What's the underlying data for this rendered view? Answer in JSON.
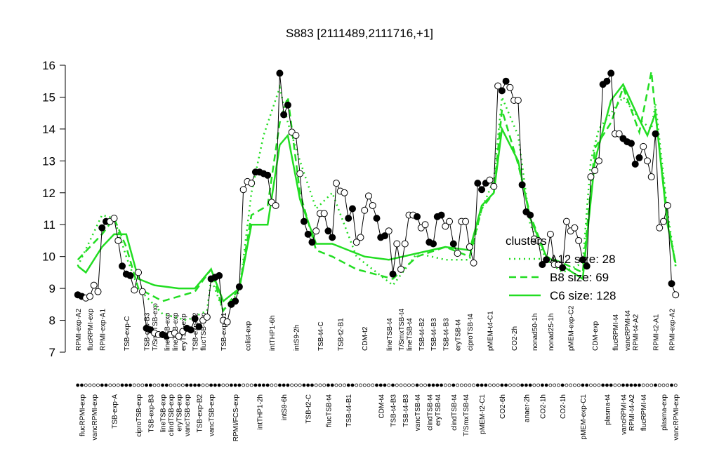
{
  "chart_data": {
    "type": "scatter",
    "title": "S883 [2111489,2111716,+1]",
    "xlim": [
      0,
      150
    ],
    "ylim": [
      7,
      16
    ],
    "yticks": [
      7,
      8,
      9,
      10,
      11,
      12,
      13,
      14,
      15,
      16
    ],
    "xticks": [
      {
        "value": 1,
        "label": "RPMI-exp-A2"
      },
      {
        "value": 2,
        "label": "flucRPMI-exp"
      },
      {
        "value": 4,
        "label": "flucRPMI-exp"
      },
      {
        "value": 5,
        "label": "vancRPMI-exp"
      },
      {
        "value": 7,
        "label": "RPMI-exp-A1"
      },
      {
        "value": 10,
        "label": "TSB-exp-A"
      },
      {
        "value": 13,
        "label": "TSB-exp-C"
      },
      {
        "value": 16,
        "label": "ciproTSB-exp"
      },
      {
        "value": 18,
        "label": "TSB-exp-B3"
      },
      {
        "value": 19,
        "label": "TSB-exp-B3"
      },
      {
        "value": 20,
        "label": "T/SmxTSB-exp"
      },
      {
        "value": 22,
        "label": "lineTSB-exp"
      },
      {
        "value": 23,
        "label": "lineTSB-exp"
      },
      {
        "value": 24,
        "label": "clindTSB-exp"
      },
      {
        "value": 25,
        "label": "lineTSB-exp"
      },
      {
        "value": 26,
        "label": "eryTSB-exp"
      },
      {
        "value": 27,
        "label": "eryTSB-exp"
      },
      {
        "value": 28,
        "label": "vancTSB-exp"
      },
      {
        "value": 30,
        "label": "TSB-exp-B2"
      },
      {
        "value": 31,
        "label": "TSB-exp-B2"
      },
      {
        "value": 32,
        "label": "flucTSB-exp"
      },
      {
        "value": 34,
        "label": "vancTSB-exp"
      },
      {
        "value": 37,
        "label": "TSB-exp-B1"
      },
      {
        "value": 40,
        "label": "RPMI/FCS-exp"
      },
      {
        "value": 43,
        "label": "colist-exp"
      },
      {
        "value": 46,
        "label": "intTHP1-2h"
      },
      {
        "value": 49,
        "label": "intTHP1-6h"
      },
      {
        "value": 52,
        "label": "intS9-6h"
      },
      {
        "value": 55,
        "label": "intS9-2h"
      },
      {
        "value": 58,
        "label": "TSB-t2-C"
      },
      {
        "value": 61,
        "label": "TSB-t4-C"
      },
      {
        "value": 63,
        "label": "flucTSB-t4"
      },
      {
        "value": 66,
        "label": "TSB-t2-B1"
      },
      {
        "value": 68,
        "label": "TSB-t4-B1"
      },
      {
        "value": 72,
        "label": "CDM-t2"
      },
      {
        "value": 76,
        "label": "CDM-t4"
      },
      {
        "value": 78,
        "label": "lineTSB-t4"
      },
      {
        "value": 79,
        "label": "TSB-t4-B3"
      },
      {
        "value": 81,
        "label": "T/SmxTSB-t4"
      },
      {
        "value": 82,
        "label": "TSB-t4-B3"
      },
      {
        "value": 83,
        "label": "lineTSB-t4"
      },
      {
        "value": 85,
        "label": "vancTSB-t4"
      },
      {
        "value": 86,
        "label": "TSB-t4-B2"
      },
      {
        "value": 88,
        "label": "clindTSB-t4"
      },
      {
        "value": 89,
        "label": "TSB-t4-B3"
      },
      {
        "value": 90,
        "label": "eryTSB-t4"
      },
      {
        "value": 92,
        "label": "TSB-t4-B3"
      },
      {
        "value": 94,
        "label": "clindTSB-t4"
      },
      {
        "value": 95,
        "label": "eryTSB-t4"
      },
      {
        "value": 97,
        "label": "T/SmxTSB-t4"
      },
      {
        "value": 98,
        "label": "ciproTSB-t4"
      },
      {
        "value": 101,
        "label": "pMEM-t2-C1"
      },
      {
        "value": 103,
        "label": "pMEM-t4-C1"
      },
      {
        "value": 106,
        "label": "CO2-6h"
      },
      {
        "value": 109,
        "label": "CO2-2h"
      },
      {
        "value": 112,
        "label": "anaer-2h"
      },
      {
        "value": 114,
        "label": "nonad50-1h"
      },
      {
        "value": 116,
        "label": "CO2-1h"
      },
      {
        "value": 118,
        "label": "nonad25-1h"
      },
      {
        "value": 121,
        "label": "CO2-1h"
      },
      {
        "value": 123,
        "label": "pMEM-exp-C2"
      },
      {
        "value": 126,
        "label": "pMEM-exp-C1"
      },
      {
        "value": 129,
        "label": "CDM-exp"
      },
      {
        "value": 132,
        "label": "plasma-t4"
      },
      {
        "value": 134,
        "label": "flucRPMI-t4"
      },
      {
        "value": 136,
        "label": "vancRPMI-t4"
      },
      {
        "value": 137,
        "label": "vancRPMI-t4"
      },
      {
        "value": 138,
        "label": "RPMI-t4-A2"
      },
      {
        "value": 139,
        "label": "RPMI-t4-A2"
      },
      {
        "value": 141,
        "label": "flucRPMI-t4"
      },
      {
        "value": 144,
        "label": "RPMI-t2-A1"
      },
      {
        "value": 146,
        "label": "plasma-exp"
      },
      {
        "value": 148,
        "label": "RPMI-exp-A2"
      },
      {
        "value": 149,
        "label": "vancRPMI-exp"
      }
    ],
    "points": {
      "color": "#000000",
      "x": [
        1,
        2,
        3,
        4,
        5,
        6,
        7,
        8,
        9,
        10,
        11,
        12,
        13,
        14,
        15,
        16,
        17,
        18,
        19,
        20,
        21,
        22,
        23,
        24,
        25,
        26,
        27,
        28,
        29,
        30,
        31,
        32,
        33,
        34,
        35,
        36,
        37,
        38,
        39,
        40,
        41,
        42,
        43,
        44,
        45,
        46,
        47,
        48,
        49,
        50,
        51,
        52,
        53,
        54,
        55,
        56,
        57,
        58,
        59,
        60,
        61,
        62,
        63,
        64,
        65,
        66,
        67,
        68,
        69,
        70,
        71,
        72,
        73,
        74,
        75,
        76,
        77,
        78,
        79,
        80,
        81,
        82,
        83,
        84,
        85,
        86,
        87,
        88,
        89,
        90,
        91,
        92,
        93,
        94,
        95,
        96,
        97,
        98,
        99,
        100,
        101,
        102,
        103,
        104,
        105,
        106,
        107,
        108,
        109,
        110,
        111,
        112,
        113,
        114,
        115,
        116,
        117,
        118,
        119,
        120,
        121,
        122,
        123,
        124,
        125,
        126,
        127,
        128,
        129,
        130,
        131,
        132,
        133,
        134,
        135,
        136,
        137,
        138,
        139,
        140,
        141,
        142,
        143,
        144,
        145,
        146,
        147,
        148,
        149
      ],
      "values": [
        8.8,
        8.75,
        8.7,
        8.75,
        9.1,
        8.9,
        10.9,
        11.1,
        11.1,
        11.2,
        10.5,
        9.7,
        9.45,
        9.4,
        8.95,
        9.5,
        8.9,
        7.75,
        7.7,
        7.6,
        7.55,
        7.55,
        7.5,
        7.55,
        7.6,
        7.5,
        7.65,
        7.75,
        7.7,
        8.05,
        7.8,
        8.0,
        8.1,
        9.3,
        9.35,
        9.4,
        8.0,
        7.95,
        8.5,
        8.6,
        9.05,
        12.1,
        12.35,
        12.3,
        12.65,
        12.65,
        12.6,
        12.55,
        11.7,
        11.6,
        15.75,
        14.45,
        14.75,
        13.9,
        13.8,
        12.6,
        11.1,
        10.7,
        10.45,
        10.8,
        11.35,
        11.35,
        10.8,
        10.6,
        12.3,
        12.05,
        12.0,
        11.2,
        11.5,
        10.45,
        10.6,
        11.45,
        11.9,
        11.6,
        11.2,
        10.6,
        10.65,
        10.8,
        9.45,
        10.4,
        9.6,
        10.4,
        11.3,
        11.3,
        11.25,
        10.9,
        11.0,
        10.45,
        10.4,
        11.25,
        11.3,
        10.95,
        11.1,
        10.4,
        10.1,
        11.1,
        11.1,
        10.3,
        9.8,
        12.3,
        12.1,
        12.3,
        12.4,
        12.2,
        15.35,
        15.2,
        15.5,
        15.3,
        14.9,
        14.9,
        12.25,
        11.4,
        11.3,
        10.55,
        10.5,
        9.75,
        9.9,
        10.7,
        9.75,
        9.75,
        9.65,
        11.1,
        10.8,
        10.9,
        10.5,
        9.9,
        9.7,
        12.5,
        12.7,
        13.0,
        15.4,
        15.5,
        15.75,
        13.85,
        13.85,
        13.7,
        13.6,
        13.55,
        12.9,
        13.1,
        13.45,
        13.0,
        12.5,
        13.85,
        10.9,
        11.1,
        11.6,
        9.15,
        8.8
      ],
      "filled": [
        true,
        true,
        false,
        false,
        false,
        false,
        true,
        true,
        false,
        false,
        false,
        true,
        true,
        true,
        false,
        false,
        false,
        true,
        true,
        false,
        false,
        true,
        true,
        false,
        false,
        false,
        false,
        true,
        true,
        true,
        true,
        false,
        false,
        true,
        true,
        true,
        false,
        false,
        true,
        true,
        true,
        false,
        false,
        false,
        true,
        true,
        true,
        true,
        false,
        false,
        true,
        true,
        true,
        false,
        false,
        false,
        true,
        true,
        true,
        false,
        false,
        false,
        true,
        true,
        false,
        false,
        false,
        true,
        true,
        false,
        false,
        false,
        false,
        false,
        true,
        true,
        true,
        false,
        true,
        false,
        false,
        false,
        false,
        false,
        true,
        false,
        false,
        true,
        true,
        true,
        true,
        false,
        false,
        true,
        false,
        false,
        false,
        false,
        false,
        true,
        true,
        true,
        false,
        false,
        false,
        true,
        true,
        false,
        false,
        false,
        true,
        true,
        true,
        false,
        false,
        true,
        true,
        false,
        false,
        false,
        true,
        false,
        false,
        false,
        false,
        true,
        true,
        false,
        false,
        false,
        true,
        true,
        true,
        false,
        false,
        true,
        true,
        true,
        true,
        true,
        false,
        false,
        false,
        true,
        false,
        false,
        false,
        true,
        false
      ]
    },
    "legend_title": "clusters",
    "series": [
      {
        "name": "A12 size: 28",
        "color": "#22dd22",
        "style": "dotted",
        "x": [
          1,
          7,
          10,
          13,
          16,
          22,
          28,
          33,
          34,
          37,
          41,
          44,
          47,
          51,
          53,
          56,
          60,
          64,
          70,
          79,
          85,
          92,
          98,
          101,
          104,
          106,
          110,
          113,
          117,
          121,
          126,
          128,
          130,
          133,
          136,
          140,
          143,
          144,
          147,
          149
        ],
        "values": [
          9.7,
          11.3,
          11.2,
          10.0,
          9.0,
          8.2,
          8.0,
          8.3,
          9.3,
          8.3,
          8.9,
          12.0,
          13.8,
          15.3,
          14.2,
          13.0,
          11.5,
          12.0,
          10.0,
          9.1,
          10.1,
          9.9,
          9.9,
          11.5,
          12.4,
          15.0,
          13.8,
          11.0,
          9.9,
          9.5,
          9.8,
          13.0,
          14.0,
          14.5,
          15.0,
          14.3,
          14.0,
          14.8,
          11.4,
          9.7
        ]
      },
      {
        "name": "B8 size: 69",
        "color": "#22dd22",
        "style": "dashed",
        "x": [
          1,
          7,
          10,
          13,
          16,
          22,
          30,
          34,
          37,
          41,
          44,
          48,
          51,
          53,
          56,
          60,
          64,
          70,
          79,
          85,
          92,
          98,
          101,
          104,
          106,
          110,
          113,
          117,
          121,
          126,
          129,
          133,
          136,
          140,
          143,
          144,
          147,
          149
        ],
        "values": [
          9.9,
          10.7,
          11.2,
          10.3,
          9.0,
          8.6,
          8.9,
          9.6,
          8.3,
          9.0,
          11.3,
          11.6,
          14.2,
          15.0,
          12.0,
          10.2,
          10.0,
          9.6,
          9.3,
          10.0,
          10.3,
          10.0,
          11.5,
          12.0,
          14.6,
          12.9,
          11.3,
          10.0,
          9.8,
          9.5,
          13.4,
          14.2,
          15.3,
          13.9,
          15.8,
          14.5,
          11.2,
          9.7
        ]
      },
      {
        "name": "C6 size: 128",
        "color": "#22dd22",
        "style": "solid",
        "x": [
          1,
          3,
          7,
          10,
          13,
          16,
          20,
          26,
          30,
          34,
          37,
          41,
          44,
          48,
          51,
          53,
          56,
          60,
          64,
          68,
          72,
          78,
          85,
          92,
          98,
          101,
          104,
          106,
          110,
          113,
          117,
          121,
          126,
          129,
          133,
          136,
          140,
          142,
          144,
          147,
          149
        ],
        "values": [
          9.7,
          9.5,
          10.3,
          10.7,
          10.7,
          9.3,
          9.1,
          9.0,
          9.0,
          9.6,
          8.6,
          9.0,
          11.0,
          11.0,
          13.5,
          13.8,
          11.8,
          10.4,
          10.4,
          10.2,
          10.0,
          9.9,
          10.1,
          10.3,
          10.2,
          11.6,
          12.0,
          14.0,
          13.0,
          11.2,
          10.0,
          9.7,
          9.3,
          13.0,
          14.9,
          15.4,
          14.3,
          13.8,
          14.5,
          11.0,
          9.8
        ]
      }
    ]
  }
}
